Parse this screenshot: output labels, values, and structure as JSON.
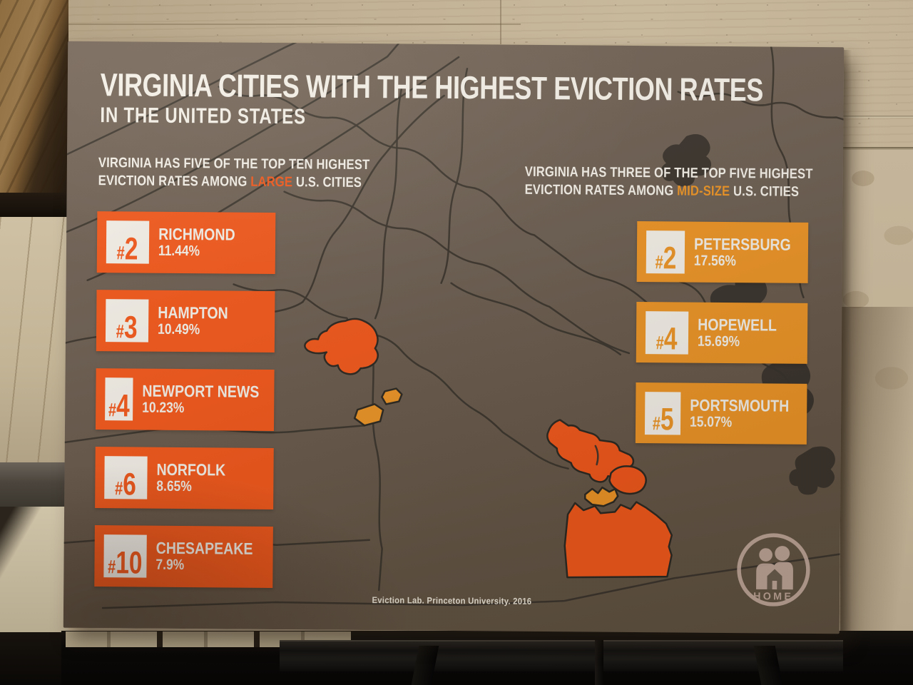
{
  "poster": {
    "title": "VIRGINIA CITIES WITH THE HIGHEST EVICTION RATES",
    "subtitle": "IN THE UNITED STATES",
    "left_section": {
      "heading_line1": "VIRGINIA HAS FIVE OF THE TOP TEN HIGHEST",
      "heading_line2_pre": "EVICTION RATES AMONG ",
      "heading_highlight": "LARGE",
      "heading_line2_post": " U.S. CITIES",
      "items": [
        {
          "rank": "#2",
          "city": "RICHMOND",
          "rate": "11.44%"
        },
        {
          "rank": "#3",
          "city": "HAMPTON",
          "rate": "10.49%"
        },
        {
          "rank": "#4",
          "city": "NEWPORT NEWS",
          "rate": "10.23%"
        },
        {
          "rank": "#6",
          "city": "NORFOLK",
          "rate": "8.65%"
        },
        {
          "rank": "#10",
          "city": "CHESAPEAKE",
          "rate": "7.9%"
        }
      ]
    },
    "right_section": {
      "heading_line1": "VIRGINIA HAS THREE OF THE TOP FIVE HIGHEST",
      "heading_line2_pre": "EVICTION RATES AMONG ",
      "heading_highlight": "MID-SIZE",
      "heading_line2_post": " U.S. CITIES",
      "items": [
        {
          "rank": "#2",
          "city": "PETERSBURG",
          "rate": "17.56%"
        },
        {
          "rank": "#4",
          "city": "HOPEWELL",
          "rate": "15.69%"
        },
        {
          "rank": "#5",
          "city": "PORTSMOUTH",
          "rate": "15.07%"
        }
      ]
    },
    "source_credit": "Eviction Lab. Princeton University. 2016",
    "logo_label": "HOME",
    "colors": {
      "large_accent": "#f3591c",
      "midsize_accent": "#ee9627",
      "poster_background": "#6c5e50",
      "map_line": "#3a342d",
      "text_white": "#f5f1e9",
      "logo": "#c9aea1"
    }
  },
  "chart_data": [
    {
      "type": "table",
      "title": "VIRGINIA HAS FIVE OF THE TOP TEN HIGHEST EVICTION RATES AMONG LARGE U.S. CITIES",
      "columns": [
        "rank",
        "city",
        "eviction_rate_pct"
      ],
      "rows": [
        [
          "#2",
          "RICHMOND",
          11.44
        ],
        [
          "#3",
          "HAMPTON",
          10.49
        ],
        [
          "#4",
          "NEWPORT NEWS",
          10.23
        ],
        [
          "#6",
          "NORFOLK",
          8.65
        ],
        [
          "#10",
          "CHESAPEAKE",
          7.9
        ]
      ]
    },
    {
      "type": "table",
      "title": "VIRGINIA HAS THREE OF THE TOP FIVE HIGHEST EVICTION RATES AMONG MID-SIZE U.S. CITIES",
      "columns": [
        "rank",
        "city",
        "eviction_rate_pct"
      ],
      "rows": [
        [
          "#2",
          "PETERSBURG",
          17.56
        ],
        [
          "#4",
          "HOPEWELL",
          15.69
        ],
        [
          "#5",
          "PORTSMOUTH",
          15.07
        ]
      ]
    }
  ]
}
